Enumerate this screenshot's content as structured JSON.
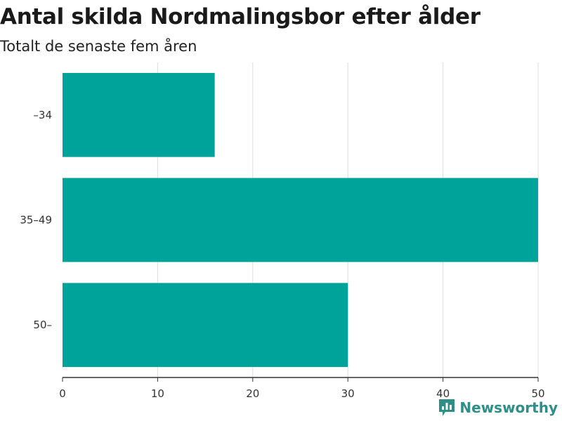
{
  "chart_data": {
    "type": "bar",
    "orientation": "horizontal",
    "title": "Antal skilda Nordmalingsbor efter ålder",
    "subtitle": "Totalt de senaste fem åren",
    "categories": [
      "–34",
      "35–49",
      "50–"
    ],
    "values": [
      16,
      50,
      30
    ],
    "xlim": [
      0,
      50
    ],
    "xticks": [
      0,
      10,
      20,
      30,
      40,
      50
    ],
    "xlabel": "",
    "ylabel": "",
    "grid": "vertical",
    "legend": "none"
  },
  "colors": {
    "bar": "#00a39a",
    "grid": "#dddddd",
    "axis": "#333333",
    "brand": "#2e8f88"
  },
  "brand": {
    "name": "Newsworthy",
    "icon": "newsworthy-logo-icon"
  }
}
